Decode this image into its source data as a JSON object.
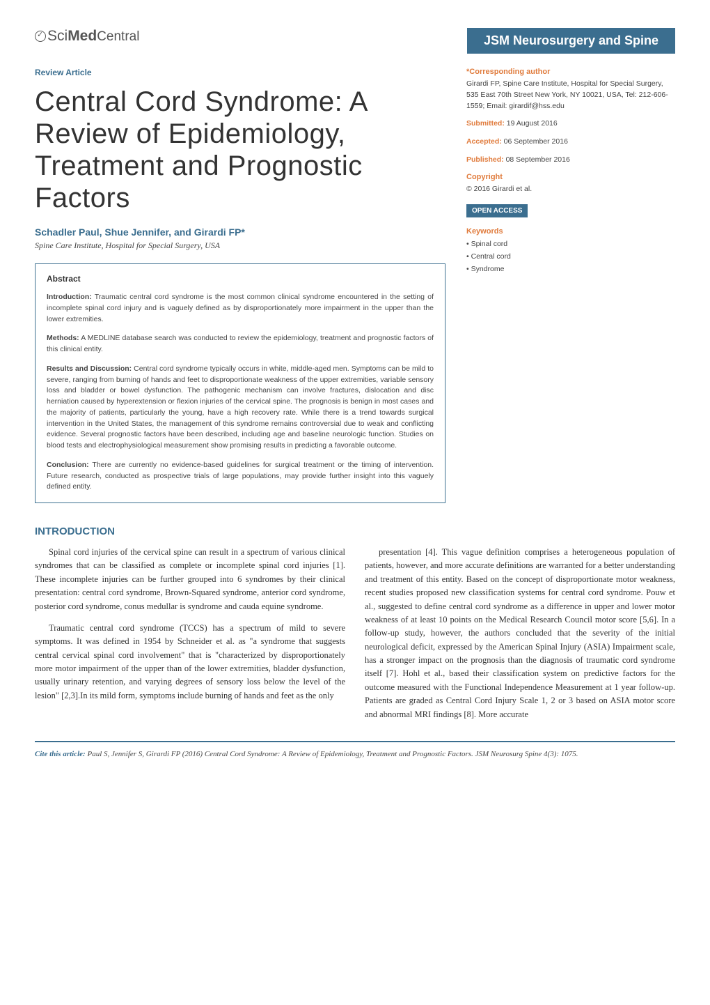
{
  "journal": {
    "logo_text": "SciMedCentral",
    "badge": "JSM Neurosurgery and Spine"
  },
  "article": {
    "type": "Review Article",
    "title": "Central Cord Syndrome: A Review of Epidemiology, Treatment and Prognostic Factors",
    "authors": "Schadler Paul, Shue Jennifer, and Girardi FP*",
    "affiliation": "Spine Care Institute, Hospital for Special Surgery, USA"
  },
  "abstract": {
    "heading": "Abstract",
    "intro_label": "Introduction:",
    "intro": " Traumatic central cord syndrome is the most common clinical syndrome encountered in the setting of incomplete spinal cord injury and is vaguely defined as by disproportionately more impairment in the upper than the lower extremities.",
    "methods_label": "Methods:",
    "methods": " A MEDLINE database search was conducted to review the epidemiology, treatment and prognostic factors of this clinical entity.",
    "results_label": "Results and Discussion:",
    "results": " Central cord syndrome typically occurs in white, middle-aged men. Symptoms can be mild to severe, ranging from burning of hands and feet to disproportionate weakness of the upper extremities, variable sensory loss and bladder or bowel dysfunction. The pathogenic mechanism can involve fractures, dislocation and disc herniation caused by hyperextension or flexion injuries of the cervical spine. The prognosis is benign in most cases and the majority of patients, particularly the young, have a high recovery rate. While there is a trend towards surgical intervention in the United States, the management of this syndrome remains controversial due to weak and conflicting evidence. Several prognostic factors have been described, including age and baseline neurologic function. Studies on blood tests and electrophysiological measurement show promising results in predicting a favorable outcome.",
    "conclusion_label": "Conclusion:",
    "conclusion": " There are currently no evidence-based guidelines for surgical treatment or the timing of intervention. Future research, conducted as prospective trials of large populations, may provide further insight into this vaguely defined entity."
  },
  "meta": {
    "corresponding_heading": "*Corresponding author",
    "corresponding_text": "Girardi FP, Spine Care Institute, Hospital for Special Surgery, 535 East 70th Street New York, NY 10021, USA, Tel: 212-606-1559; Email: girardif@hss.edu",
    "submitted_label": "Submitted:",
    "submitted": " 19 August 2016",
    "accepted_label": "Accepted:",
    "accepted": " 06 September 2016",
    "published_label": "Published:",
    "published": " 08 September 2016",
    "copyright_heading": "Copyright",
    "copyright_text": "© 2016 Girardi et al.",
    "open_access": "OPEN ACCESS",
    "keywords_heading": "Keywords",
    "keywords": [
      "Spinal cord",
      "Central cord",
      "Syndrome"
    ]
  },
  "body": {
    "intro_heading": "INTRODUCTION",
    "p1": "Spinal cord injuries of the cervical spine can result in a spectrum of various clinical syndromes that can be classified as complete or incomplete spinal cord injuries [1]. These incomplete injuries can be further grouped into 6 syndromes by their clinical presentation: central cord syndrome, Brown-Squared syndrome, anterior cord syndrome, posterior cord syndrome, conus medullar is syndrome and cauda equine syndrome.",
    "p2": "Traumatic central cord syndrome (TCCS) has a spectrum of mild to severe symptoms. It was defined in 1954 by Schneider et al. as \"a syndrome that suggests central cervical spinal cord involvement\" that is \"characterized by disproportionately more motor impairment of the upper than of the lower extremities, bladder dysfunction, usually urinary retention, and varying degrees of sensory loss below the level of the lesion\" [2,3].In its mild form, symptoms include burning of hands and feet as the only",
    "p3": "presentation [4]. This vague definition comprises a heterogeneous population of patients, however, and more accurate definitions are warranted for a better understanding and treatment of this entity. Based on the concept of disproportionate motor weakness, recent studies proposed new classification systems for central cord syndrome. Pouw et al., suggested to define central cord syndrome as a difference in upper and lower motor weakness of at least 10 points on the Medical Research Council motor score [5,6]. In a follow-up study, however, the authors concluded that the severity of the initial neurological deficit, expressed by the American Spinal Injury (ASIA) Impairment scale, has a stronger impact on the prognosis than the diagnosis of traumatic cord syndrome itself [7]. Hohl et al., based their classification system on predictive factors for the outcome measured with the Functional Independence Measurement at 1 year follow-up. Patients are graded as Central Cord Injury Scale 1, 2 or 3 based on ASIA motor score and abnormal MRI findings [8]. More accurate"
  },
  "citation": {
    "label": "Cite this article:",
    "text": " Paul S, Jennifer S, Girardi FP (2016) Central Cord Syndrome: A Review of Epidemiology, Treatment and Prognostic Factors. JSM Neurosurg Spine 4(3): 1075."
  },
  "colors": {
    "brand_blue": "#3b6e8f",
    "accent_orange": "#e07b3c",
    "text": "#333333",
    "muted": "#444444"
  },
  "typography": {
    "title_fontsize": 40,
    "body_fontsize": 12.5,
    "abstract_fontsize": 10.5,
    "meta_fontsize": 10.5
  }
}
